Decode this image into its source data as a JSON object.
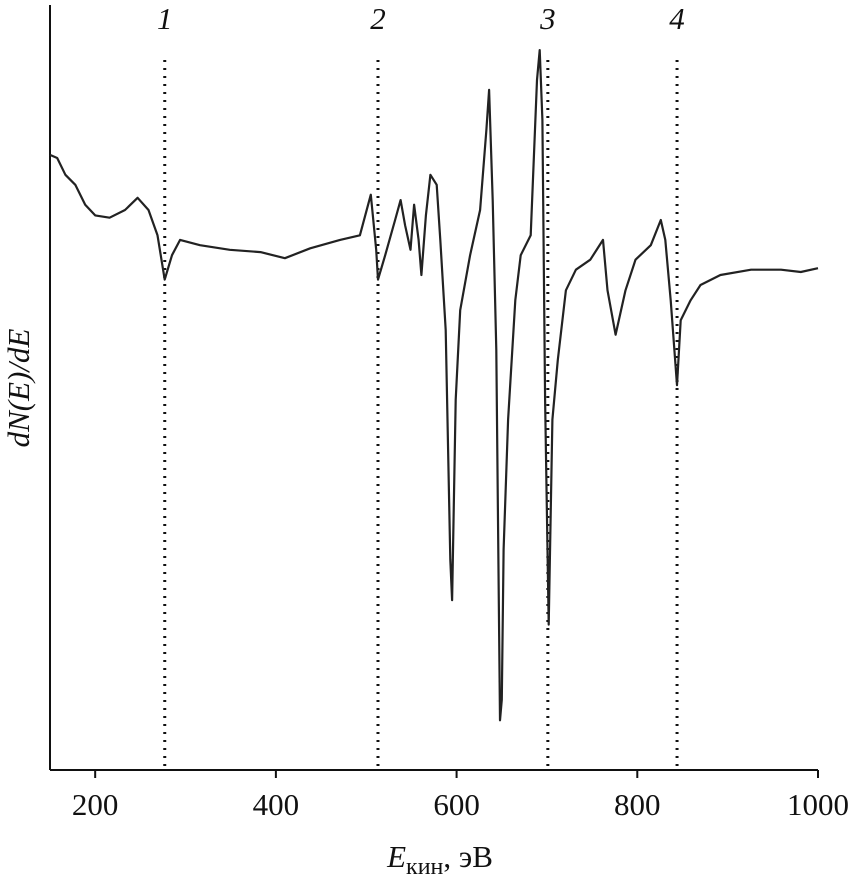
{
  "chart_data": {
    "type": "line",
    "ylabel": "dN(E)/dE",
    "xlabel": {
      "symbol": "E",
      "subscript": "кин",
      "unit": ", эВ"
    },
    "xlim": [
      150,
      1000
    ],
    "xticks": [
      200,
      400,
      600,
      800,
      1000
    ],
    "ylim": [
      0,
      100
    ],
    "color": "#222",
    "annotations": [
      {
        "x": 277,
        "label": "1"
      },
      {
        "x": 513,
        "label": "2"
      },
      {
        "x": 701,
        "label": "3"
      },
      {
        "x": 844,
        "label": "4"
      }
    ],
    "x": [
      150,
      158,
      167,
      178,
      189,
      200,
      216,
      233,
      247,
      259,
      269,
      277,
      285,
      294,
      316,
      349,
      383,
      410,
      438,
      471,
      493,
      505,
      511,
      513,
      521,
      532,
      538,
      543,
      549,
      553,
      558,
      561,
      566,
      571,
      578,
      582,
      588,
      593,
      595,
      599,
      604,
      615,
      626,
      633,
      636,
      640,
      644,
      648,
      650,
      652,
      657,
      665,
      671,
      682,
      689,
      692,
      695,
      698,
      702,
      706,
      712,
      721,
      732,
      748,
      762,
      767,
      776,
      787,
      798,
      815,
      826,
      831,
      837,
      844,
      848,
      859,
      870,
      892,
      926,
      959,
      981,
      1000
    ],
    "values": [
      80.4,
      80.0,
      77.8,
      76.5,
      73.9,
      72.5,
      72.2,
      73.2,
      74.8,
      73.2,
      69.9,
      64.1,
      67.3,
      69.3,
      68.6,
      68.0,
      67.7,
      66.9,
      68.2,
      69.3,
      69.9,
      75.2,
      68.0,
      64.1,
      67.3,
      71.9,
      74.5,
      71.2,
      68.0,
      73.9,
      69.3,
      64.7,
      72.5,
      77.8,
      76.5,
      69.3,
      57.5,
      27.5,
      22.2,
      48.4,
      60.1,
      67.3,
      73.2,
      83.7,
      88.9,
      74.5,
      54.9,
      6.5,
      9.2,
      28.8,
      45.8,
      61.4,
      67.3,
      69.9,
      90.2,
      94.1,
      85.0,
      48.4,
      19.0,
      45.8,
      53.6,
      62.7,
      65.4,
      66.7,
      69.3,
      62.7,
      56.9,
      62.7,
      66.7,
      68.6,
      71.9,
      69.3,
      61.4,
      50.3,
      58.8,
      61.4,
      63.4,
      64.7,
      65.4,
      65.4,
      65.1,
      65.6
    ]
  }
}
